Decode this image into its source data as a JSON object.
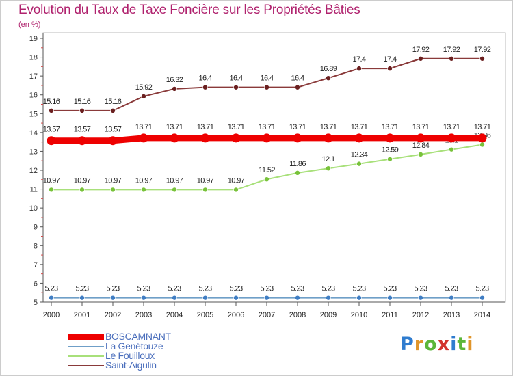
{
  "header": {
    "title": "Evolution du Taux de Taxe Foncière sur les Propriétés Bâties",
    "unit": "(en %)"
  },
  "brand": {
    "letters": [
      "P",
      "r",
      "o",
      "x",
      "i",
      "t",
      "i"
    ],
    "colors": [
      "#2f7ccf",
      "#e0952a",
      "#5bb63a",
      "#d2322d",
      "#2f7ccf",
      "#5bb63a",
      "#e0952a"
    ]
  },
  "chart_data": {
    "type": "line",
    "x": [
      "2000",
      "2001",
      "2002",
      "2003",
      "2004",
      "2005",
      "2006",
      "2007",
      "2008",
      "2009",
      "2010",
      "2011",
      "2012",
      "2013",
      "2014"
    ],
    "ylim": [
      5,
      19
    ],
    "yticks": [
      "5",
      "6",
      "7",
      "8",
      "9",
      "10",
      "11",
      "12",
      "13",
      "14",
      "15",
      "16",
      "17",
      "18",
      "19"
    ],
    "grid": false,
    "legend_position": "bottom-left",
    "series": [
      {
        "name": "BOSCAMNANT",
        "color": "#ee0000",
        "emphasis": true,
        "values": [
          13.57,
          13.57,
          13.57,
          13.71,
          13.71,
          13.71,
          13.71,
          13.71,
          13.71,
          13.71,
          13.71,
          13.71,
          13.71,
          13.71,
          13.71
        ],
        "labels": [
          "13.57",
          "13.57",
          "13.57",
          "13.71",
          "13.71",
          "13.71",
          "13.71",
          "13.71",
          "13.71",
          "13.71",
          "13.71",
          "13.71",
          "13.71",
          "13.71",
          "13.71"
        ]
      },
      {
        "name": "La Genétouze",
        "color": "#6f9fc8",
        "marker": "#3f7dc3",
        "values": [
          5.23,
          5.23,
          5.23,
          5.23,
          5.23,
          5.23,
          5.23,
          5.23,
          5.23,
          5.23,
          5.23,
          5.23,
          5.23,
          5.23,
          5.23
        ],
        "labels": [
          "5.23",
          "5.23",
          "5.23",
          "5.23",
          "5.23",
          "5.23",
          "5.23",
          "5.23",
          "5.23",
          "5.23",
          "5.23",
          "5.23",
          "5.23",
          "5.23",
          "5.23"
        ]
      },
      {
        "name": "Le Fouilloux",
        "color": "#a8e07a",
        "marker": "#78c23a",
        "values": [
          10.97,
          10.97,
          10.97,
          10.97,
          10.97,
          10.97,
          10.97,
          11.52,
          11.86,
          12.1,
          12.34,
          12.59,
          12.84,
          13.1,
          13.36
        ],
        "labels": [
          "10.97",
          "10.97",
          "10.97",
          "10.97",
          "10.97",
          "10.97",
          "10.97",
          "11.52",
          "11.86",
          "12.1",
          "12.34",
          "12.59",
          "12.84",
          "13.1",
          "13.36"
        ]
      },
      {
        "name": "Saint-Aigulin",
        "color": "#8a3a3a",
        "marker": "#6a1f1f",
        "values": [
          15.16,
          15.16,
          15.16,
          15.92,
          16.32,
          16.4,
          16.4,
          16.4,
          16.4,
          16.89,
          17.4,
          17.4,
          17.92,
          17.92,
          17.92
        ],
        "labels": [
          "15.16",
          "15.16",
          "15.16",
          "15.92",
          "16.32",
          "16.4",
          "16.4",
          "16.4",
          "16.4",
          "16.89",
          "17.4",
          "17.4",
          "17.92",
          "17.92",
          "17.92"
        ]
      }
    ]
  }
}
